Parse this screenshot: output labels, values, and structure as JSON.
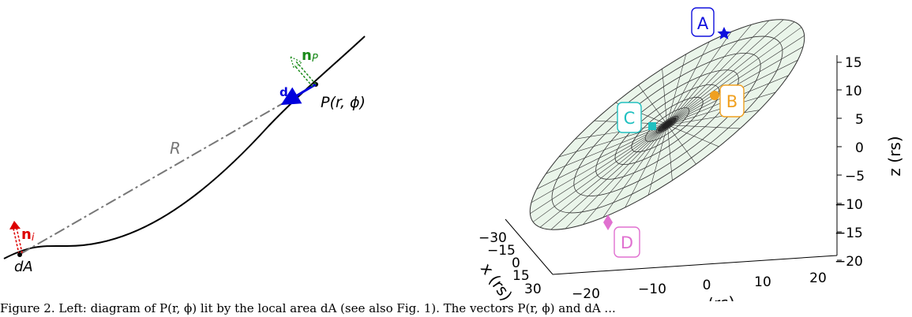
{
  "left_panel": {
    "label_nP_main": "n",
    "label_nP_sub": "P",
    "label_d": "d",
    "label_P": "P(r, ϕ)",
    "label_R": "R",
    "label_ni_main": "n",
    "label_ni_sub": "i",
    "label_dA": "dA",
    "colors": {
      "nP": "#1a8a1a",
      "d": "#0000dd",
      "ni": "#dd0000",
      "R": "#777777"
    }
  },
  "right_panel": {
    "markers": [
      {
        "label": "A",
        "color": "#1010dd",
        "shape": "star"
      },
      {
        "label": "B",
        "color": "#f0a020",
        "shape": "circle"
      },
      {
        "label": "C",
        "color": "#20c0c0",
        "shape": "square"
      },
      {
        "label": "D",
        "color": "#e070d0",
        "shape": "diamond"
      }
    ],
    "z_axis": {
      "label": "z (rs)",
      "ticks": [
        "15",
        "10",
        "5",
        "0",
        "−5",
        "−10",
        "−15",
        "−20"
      ]
    },
    "y_axis": {
      "label": "y (rs)",
      "ticks": [
        "−20",
        "−10",
        "0",
        "10",
        "20"
      ]
    },
    "x_axis": {
      "label": "x (rs)",
      "ticks": [
        "−30",
        "−15",
        "0",
        "15",
        "30"
      ]
    }
  },
  "caption": "Figure 2. Left: diagram of P(r, ϕ) lit by the local area dA (see also Fig. 1). The vectors P(r, ϕ) and dA ..."
}
